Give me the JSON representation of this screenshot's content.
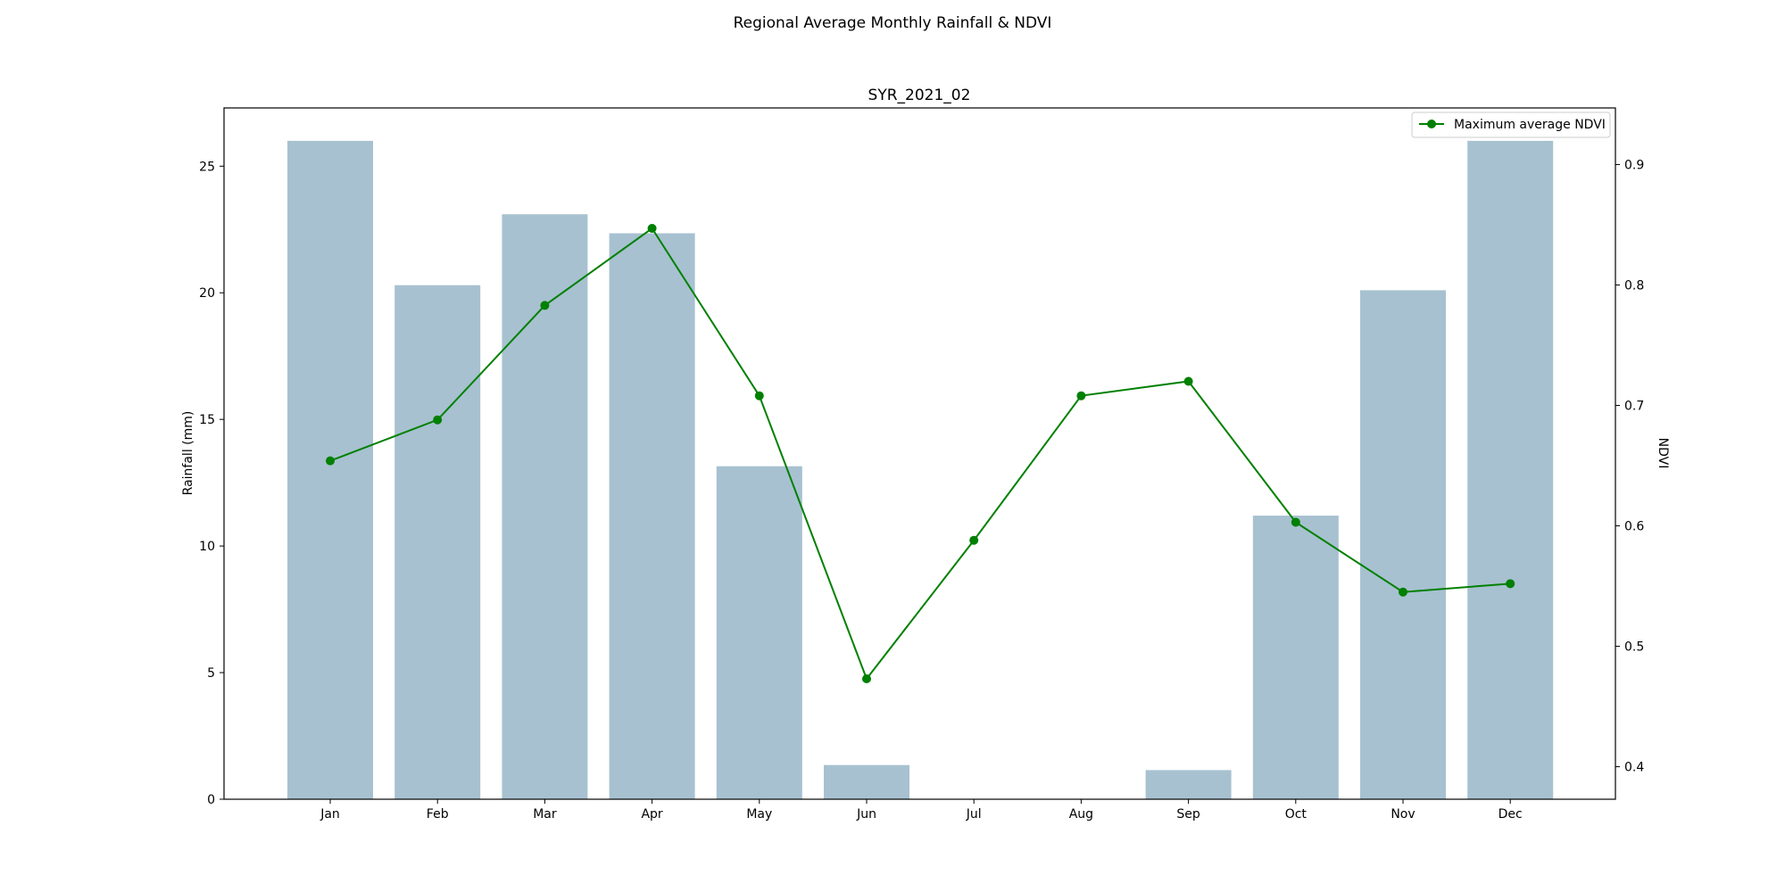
{
  "chart_data": {
    "type": "bar",
    "suptitle": "Regional Average Monthly Rainfall & NDVI",
    "title": "SYR_2021_02",
    "categories": [
      "Jan",
      "Feb",
      "Mar",
      "Apr",
      "May",
      "Jun",
      "Jul",
      "Aug",
      "Sep",
      "Oct",
      "Nov",
      "Dec"
    ],
    "ylabel": "Rainfall (mm)",
    "ylim": [
      0,
      27.3
    ],
    "yticks": [
      0,
      5,
      10,
      15,
      20,
      25
    ],
    "y2label": "NDVI",
    "y2lim": [
      0.373,
      0.947
    ],
    "y2ticks": [
      0.4,
      0.5,
      0.6,
      0.7,
      0.8,
      0.9
    ],
    "series": [
      {
        "kind": "bar",
        "values": [
          26.0,
          20.3,
          23.1,
          22.35,
          13.15,
          1.35,
          0,
          0,
          1.15,
          11.2,
          20.1,
          26.0
        ],
        "color": "#a7c1d0",
        "axis": "left"
      },
      {
        "kind": "line",
        "name": "Maximum average NDVI",
        "values": [
          0.654,
          0.688,
          0.783,
          0.847,
          0.708,
          0.473,
          0.588,
          0.708,
          0.72,
          0.603,
          0.545,
          0.552
        ],
        "color": "#008000",
        "axis": "right",
        "marker": "circle"
      }
    ],
    "legend": {
      "placement": "top-right",
      "entries": [
        "Maximum average NDVI"
      ]
    },
    "grid": false
  }
}
